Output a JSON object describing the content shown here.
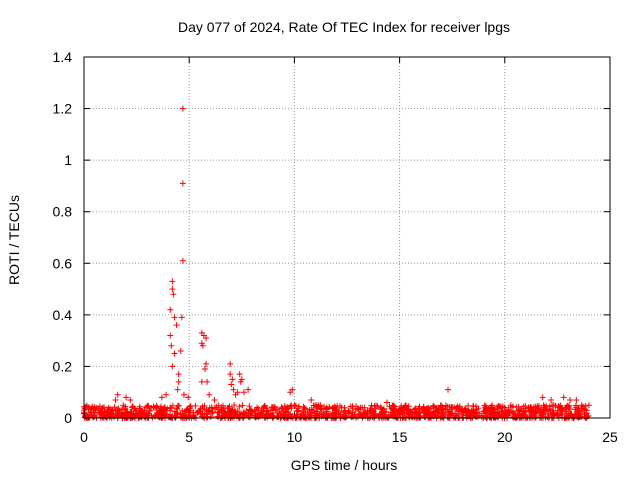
{
  "chart_data": {
    "type": "scatter",
    "title": "Day 077 of 2024, Rate Of TEC Index for receiver lpgs",
    "xlabel": "GPS time / hours",
    "ylabel": "ROTI / TECUs",
    "xlim": [
      0,
      25
    ],
    "ylim": [
      0,
      1.4
    ],
    "xticks": [
      "0",
      "5",
      "10",
      "15",
      "20",
      "25"
    ],
    "yticks": [
      "0",
      "0.2",
      "0.4",
      "0.6",
      "0.8",
      "1",
      "1.2",
      "1.4"
    ],
    "grid": true,
    "marker": "+",
    "color": "#ff0000",
    "time_range_hours": [
      0,
      24
    ],
    "baseline_band": [
      0.0,
      0.05
    ],
    "series": [
      {
        "points": [
          [
            4.1,
            0.42
          ],
          [
            4.1,
            0.32
          ],
          [
            4.2,
            0.5
          ],
          [
            4.2,
            0.53
          ],
          [
            4.25,
            0.48
          ],
          [
            4.3,
            0.39
          ],
          [
            4.4,
            0.36
          ],
          [
            4.15,
            0.28
          ],
          [
            4.3,
            0.25
          ],
          [
            4.2,
            0.2
          ],
          [
            4.5,
            0.17
          ],
          [
            4.5,
            0.14
          ],
          [
            4.45,
            0.11
          ],
          [
            4.6,
            0.26
          ],
          [
            4.65,
            0.39
          ],
          [
            4.7,
            1.2
          ],
          [
            4.7,
            0.91
          ],
          [
            4.7,
            0.61
          ],
          [
            4.75,
            0.09
          ],
          [
            4.95,
            0.08
          ],
          [
            5.6,
            0.33
          ],
          [
            5.6,
            0.29
          ],
          [
            5.65,
            0.28
          ],
          [
            5.7,
            0.32
          ],
          [
            5.8,
            0.31
          ],
          [
            5.75,
            0.19
          ],
          [
            5.8,
            0.21
          ],
          [
            5.6,
            0.14
          ],
          [
            5.85,
            0.14
          ],
          [
            5.95,
            0.09
          ],
          [
            6.95,
            0.21
          ],
          [
            6.95,
            0.17
          ],
          [
            7.05,
            0.15
          ],
          [
            7.0,
            0.13
          ],
          [
            7.1,
            0.11
          ],
          [
            7.2,
            0.09
          ],
          [
            7.4,
            0.17
          ],
          [
            7.5,
            0.15
          ],
          [
            7.45,
            0.14
          ],
          [
            7.3,
            0.1
          ],
          [
            7.6,
            0.1
          ],
          [
            7.8,
            0.11
          ],
          [
            1.6,
            0.09
          ],
          [
            1.5,
            0.07
          ],
          [
            2.0,
            0.08
          ],
          [
            2.2,
            0.07
          ],
          [
            3.7,
            0.08
          ],
          [
            3.9,
            0.09
          ],
          [
            6.2,
            0.07
          ],
          [
            9.8,
            0.1
          ],
          [
            9.9,
            0.11
          ],
          [
            10.8,
            0.07
          ],
          [
            14.4,
            0.06
          ],
          [
            17.3,
            0.11
          ],
          [
            21.8,
            0.08
          ],
          [
            22.2,
            0.07
          ],
          [
            22.8,
            0.08
          ],
          [
            23.1,
            0.07
          ],
          [
            23.4,
            0.07
          ]
        ]
      }
    ]
  }
}
